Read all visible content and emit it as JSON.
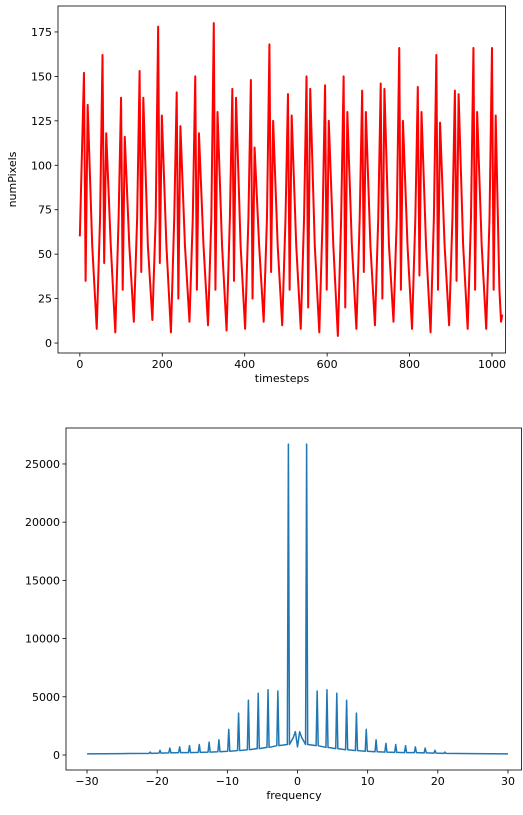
{
  "chart_data": [
    {
      "type": "line",
      "color": "#ff0000",
      "xlabel": "timesteps",
      "ylabel": "numPixels",
      "xlim": [
        -53,
        1034
      ],
      "ylim": [
        -5.6,
        189.6
      ],
      "xticks": [
        0,
        200,
        400,
        600,
        800,
        1000
      ],
      "yticks": [
        0,
        25,
        50,
        75,
        100,
        125,
        150,
        175
      ],
      "x": [
        0,
        10,
        14,
        19,
        30,
        41,
        49,
        55,
        59,
        64,
        75,
        86,
        94,
        100,
        104,
        109,
        120,
        131,
        139,
        145,
        149,
        154,
        165,
        176,
        184,
        190,
        194,
        199,
        210,
        221,
        229,
        235,
        239,
        244,
        255,
        266,
        274,
        280,
        284,
        289,
        300,
        311,
        319,
        325,
        329,
        334,
        345,
        356,
        364,
        370,
        374,
        379,
        390,
        401,
        409,
        415,
        419,
        424,
        435,
        446,
        454,
        460,
        464,
        469,
        480,
        491,
        499,
        505,
        509,
        514,
        525,
        536,
        544,
        550,
        554,
        559,
        570,
        581,
        589,
        595,
        599,
        604,
        615,
        626,
        634,
        640,
        644,
        649,
        660,
        671,
        679,
        685,
        689,
        694,
        705,
        716,
        724,
        730,
        734,
        739,
        750,
        761,
        769,
        775,
        779,
        784,
        795,
        806,
        814,
        820,
        824,
        829,
        840,
        851,
        859,
        865,
        869,
        874,
        885,
        896,
        904,
        910,
        914,
        919,
        930,
        941,
        949,
        955,
        959,
        964,
        975,
        986,
        994,
        1000,
        1004,
        1009,
        1018,
        1022,
        1025
      ],
      "values": [
        60,
        152,
        35,
        134,
        55,
        8,
        70,
        162,
        45,
        118,
        55,
        6,
        70,
        138,
        30,
        116,
        55,
        12,
        70,
        153,
        40,
        138,
        55,
        13,
        70,
        178,
        45,
        128,
        55,
        6,
        70,
        141,
        25,
        122,
        55,
        12,
        70,
        150,
        30,
        118,
        55,
        10,
        70,
        180,
        30,
        130,
        55,
        7,
        70,
        143,
        35,
        138,
        55,
        8,
        70,
        148,
        25,
        110,
        55,
        12,
        70,
        168,
        40,
        125,
        55,
        10,
        70,
        140,
        30,
        128,
        55,
        8,
        70,
        150,
        20,
        143,
        55,
        6,
        70,
        145,
        30,
        125,
        55,
        4,
        70,
        150,
        20,
        130,
        55,
        8,
        70,
        142,
        40,
        130,
        55,
        10,
        70,
        146,
        25,
        143,
        55,
        12,
        70,
        166,
        30,
        125,
        55,
        8,
        70,
        144,
        38,
        130,
        55,
        6,
        70,
        162,
        30,
        124,
        55,
        10,
        70,
        142,
        35,
        140,
        55,
        8,
        70,
        166,
        30,
        130,
        55,
        8,
        70,
        166,
        30,
        128,
        30,
        12,
        16
      ]
    },
    {
      "type": "line",
      "color": "#1f77b4",
      "xlabel": "frequency",
      "xlim": [
        -33,
        32
      ],
      "ylim": [
        -1290,
        28090
      ],
      "xticks": [
        {
          "value": -30,
          "label": "−30"
        },
        {
          "value": -20,
          "label": "−20"
        },
        {
          "value": -10,
          "label": "−10"
        },
        0,
        10,
        20,
        30
      ],
      "yticks": [
        0,
        5000,
        10000,
        15000,
        20000,
        25000
      ],
      "x": [
        -30,
        -25,
        -21.15,
        -21,
        -20.85,
        -19.75,
        -19.6,
        -19.45,
        -18.35,
        -18.2,
        -18.05,
        -16.95,
        -16.8,
        -16.65,
        -15.55,
        -15.4,
        -15.25,
        -14.15,
        -14,
        -13.85,
        -12.75,
        -12.6,
        -12.45,
        -11.35,
        -11.2,
        -11.05,
        -9.95,
        -9.8,
        -9.65,
        -8.55,
        -8.4,
        -8.25,
        -7.15,
        -7.0,
        -6.85,
        -5.75,
        -5.6,
        -5.45,
        -4.35,
        -4.2,
        -4.05,
        -2.95,
        -2.8,
        -2.65,
        -1.45,
        -1.3,
        -1.15,
        -0.6,
        -0.3,
        0,
        0.3,
        0.6,
        1.15,
        1.3,
        1.45,
        2.65,
        2.8,
        2.95,
        4.05,
        4.2,
        4.35,
        5.45,
        5.6,
        5.75,
        6.85,
        7,
        7.15,
        8.25,
        8.4,
        8.55,
        9.65,
        9.8,
        9.95,
        11.05,
        11.2,
        11.35,
        12.45,
        12.6,
        12.75,
        13.85,
        14,
        14.15,
        15.25,
        15.4,
        15.55,
        16.65,
        16.8,
        16.95,
        18.05,
        18.2,
        18.35,
        19.45,
        19.6,
        19.75,
        20.85,
        21,
        21.15,
        25,
        30
      ],
      "values": [
        100,
        120,
        140,
        250,
        140,
        160,
        400,
        160,
        180,
        600,
        180,
        200,
        700,
        200,
        200,
        800,
        200,
        220,
        900,
        220,
        250,
        1100,
        250,
        280,
        1300,
        280,
        320,
        2200,
        320,
        380,
        3600,
        380,
        450,
        4700,
        450,
        550,
        5300,
        550,
        650,
        5600,
        650,
        800,
        5500,
        800,
        900,
        26700,
        900,
        1500,
        2000,
        700,
        2000,
        1500,
        900,
        26700,
        900,
        800,
        5500,
        800,
        650,
        5600,
        650,
        550,
        5300,
        550,
        450,
        4700,
        450,
        380,
        3600,
        380,
        320,
        2200,
        320,
        280,
        1300,
        280,
        250,
        1000,
        250,
        220,
        900,
        220,
        200,
        800,
        200,
        200,
        700,
        200,
        180,
        600,
        180,
        160,
        400,
        160,
        140,
        250,
        140,
        120,
        100
      ]
    }
  ]
}
